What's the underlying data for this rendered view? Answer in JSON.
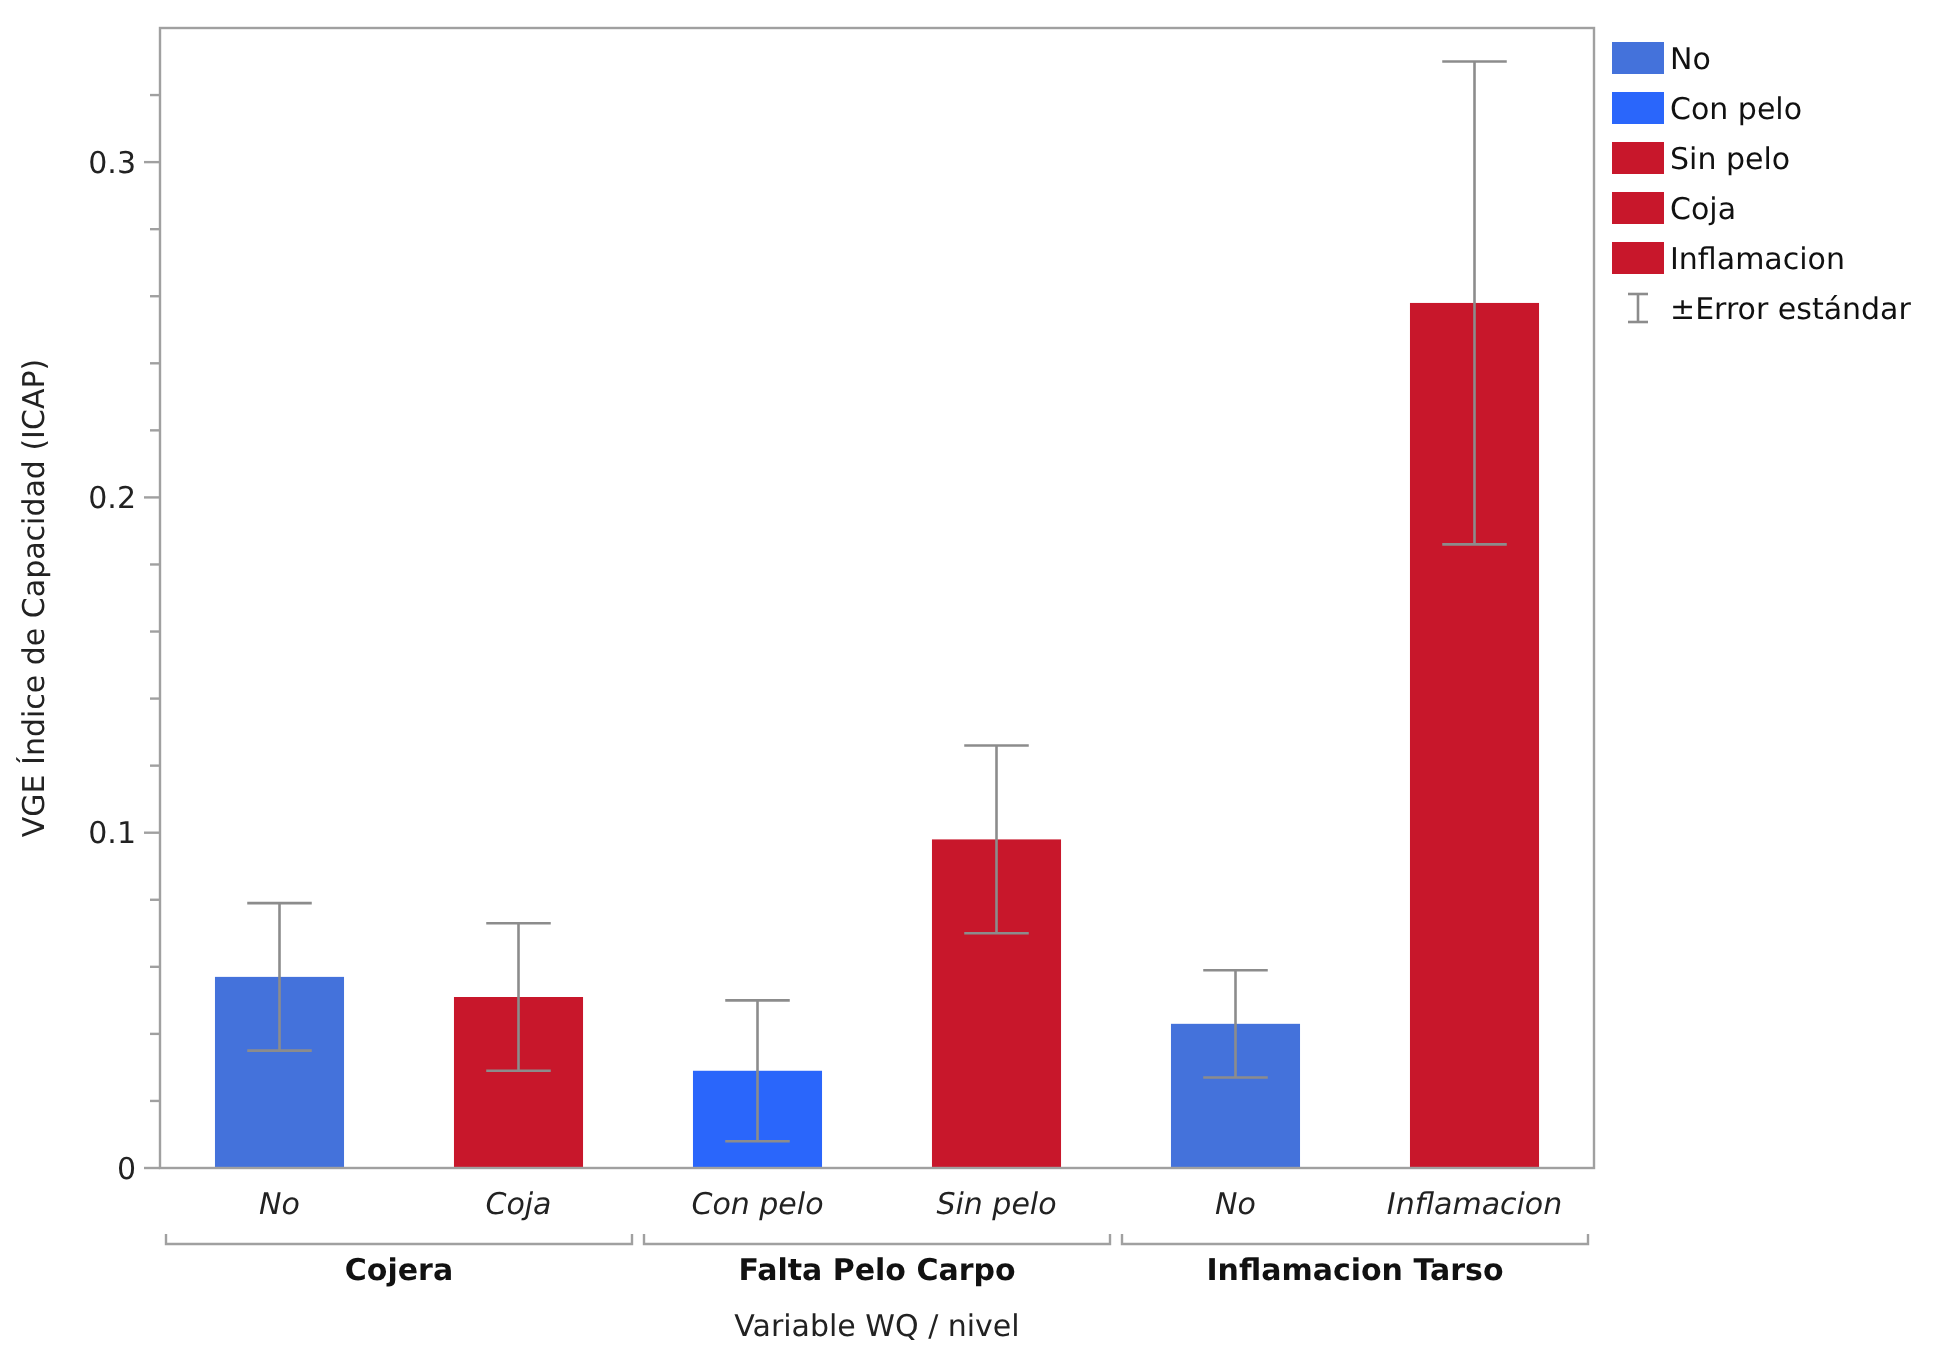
{
  "chart_data": {
    "type": "bar",
    "categories": [
      "No",
      "Coja",
      "Con pelo",
      "Sin pelo",
      "No",
      "Inflamacion"
    ],
    "series": [
      {
        "name": "No",
        "color": "#4472db",
        "values": [
          0.057,
          null,
          null,
          null,
          0.043,
          null
        ],
        "errors": [
          0.022,
          null,
          null,
          null,
          0.016,
          null
        ]
      },
      {
        "name": "Con pelo",
        "color": "#2a66fb",
        "values": [
          null,
          null,
          0.029,
          null,
          null,
          null
        ],
        "errors": [
          null,
          null,
          0.021,
          null,
          null,
          null
        ]
      },
      {
        "name": "Sin pelo",
        "color": "#c8172b",
        "values": [
          null,
          null,
          null,
          0.098,
          null,
          null
        ],
        "errors": [
          null,
          null,
          null,
          0.028,
          null,
          null
        ]
      },
      {
        "name": "Coja",
        "color": "#c8172b",
        "values": [
          null,
          0.051,
          null,
          null,
          null,
          null
        ],
        "errors": [
          null,
          0.022,
          null,
          null,
          null,
          null
        ]
      },
      {
        "name": "Inflamacion",
        "color": "#c8172b",
        "values": [
          null,
          null,
          null,
          null,
          null,
          0.258
        ],
        "errors": [
          null,
          null,
          null,
          null,
          null,
          0.072
        ]
      }
    ],
    "xlabel": "Variable WQ / nivel",
    "ylabel": "VGE Índice de Capacidad (ICAP)",
    "ylim": [
      0,
      0.34
    ],
    "yticks": [
      0,
      {
        "value": 0.02,
        "label": null
      },
      {
        "value": 0.04,
        "label": null
      },
      {
        "value": 0.06,
        "label": null
      },
      {
        "value": 0.08,
        "label": null
      },
      0.1,
      {
        "value": 0.12,
        "label": null
      },
      {
        "value": 0.14,
        "label": null
      },
      {
        "value": 0.16,
        "label": null
      },
      {
        "value": 0.18,
        "label": null
      },
      0.2,
      {
        "value": 0.22,
        "label": null
      },
      {
        "value": 0.24,
        "label": null
      },
      {
        "value": 0.26,
        "label": null
      },
      {
        "value": 0.28,
        "label": null
      },
      0.3,
      {
        "value": 0.32,
        "label": null
      }
    ],
    "legend": "right",
    "annotations": [
      "Cojera",
      "Falta Pelo Carpo",
      "Inflamacion Tarso",
      "±Error estándar"
    ]
  }
}
